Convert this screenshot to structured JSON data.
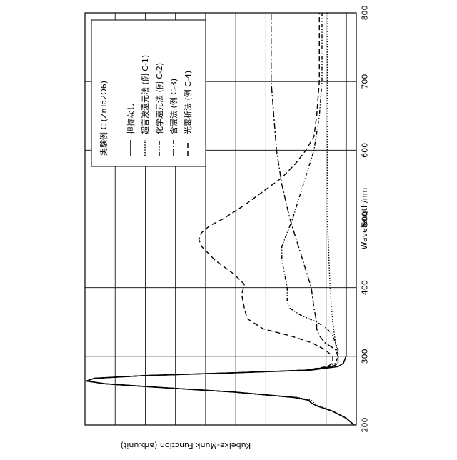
{
  "chart_data": {
    "type": "line",
    "orientation": "rotated-90",
    "title": "",
    "xlabel": "Wavelength/nm",
    "ylabel": "Kubelka-Munk Function (arb.unit)",
    "xlim": [
      200,
      800
    ],
    "x_ticks": [
      200,
      300,
      400,
      500,
      600,
      700,
      800
    ],
    "ylim": [
      0,
      1
    ],
    "grid": true,
    "legend": {
      "placement": "top-left",
      "title": "実験例 C (ZnTa2O6)"
    },
    "series": [
      {
        "name": "担持なし",
        "style": "solid",
        "x": [
          200,
          210,
          220,
          228,
          232,
          236,
          240,
          248,
          255,
          260,
          264,
          268,
          272,
          276,
          280,
          285,
          290,
          300,
          320,
          350,
          400,
          500,
          600,
          700,
          800
        ],
        "y": [
          0.0,
          0.03,
          0.08,
          0.14,
          0.16,
          0.17,
          0.22,
          0.45,
          0.74,
          0.93,
          1.0,
          0.97,
          0.78,
          0.45,
          0.16,
          0.06,
          0.04,
          0.03,
          0.03,
          0.03,
          0.03,
          0.03,
          0.03,
          0.03,
          0.03
        ]
      },
      {
        "name": "超音波還元法 (例 C-1)",
        "style": "dotted",
        "x": [
          200,
          210,
          220,
          228,
          232,
          236,
          240,
          248,
          255,
          260,
          264,
          268,
          272,
          276,
          280,
          285,
          290,
          300,
          320,
          350,
          400,
          450,
          500,
          600,
          700,
          800
        ],
        "y": [
          0.0,
          0.03,
          0.08,
          0.13,
          0.15,
          0.16,
          0.21,
          0.45,
          0.74,
          0.93,
          1.0,
          0.97,
          0.78,
          0.45,
          0.17,
          0.08,
          0.06,
          0.06,
          0.07,
          0.08,
          0.09,
          0.095,
          0.1,
          0.1,
          0.1,
          0.1
        ]
      },
      {
        "name": "化学還元法 (例 C-2)",
        "style": "dash-dot-dot",
        "x": [
          200,
          210,
          220,
          228,
          232,
          236,
          240,
          248,
          255,
          260,
          264,
          268,
          272,
          276,
          280,
          285,
          290,
          300,
          310,
          320,
          330,
          340,
          350,
          360,
          370,
          380,
          400,
          420,
          440,
          460,
          480,
          500,
          550,
          600,
          650,
          700,
          750,
          800
        ],
        "y": [
          0.0,
          0.03,
          0.08,
          0.14,
          0.16,
          0.17,
          0.22,
          0.45,
          0.74,
          0.93,
          1.0,
          0.97,
          0.78,
          0.45,
          0.17,
          0.09,
          0.07,
          0.06,
          0.06,
          0.07,
          0.08,
          0.1,
          0.14,
          0.2,
          0.24,
          0.25,
          0.25,
          0.26,
          0.27,
          0.27,
          0.25,
          0.23,
          0.19,
          0.15,
          0.13,
          0.12,
          0.12,
          0.12
        ]
      },
      {
        "name": "含浸法 (例 C-3)",
        "style": "dash-dot",
        "x": [
          200,
          210,
          220,
          228,
          232,
          236,
          240,
          248,
          255,
          260,
          264,
          268,
          272,
          276,
          280,
          285,
          290,
          300,
          310,
          320,
          330,
          340,
          350,
          370,
          400,
          450,
          500,
          550,
          600,
          650,
          700,
          750,
          800
        ],
        "y": [
          0.0,
          0.03,
          0.08,
          0.14,
          0.16,
          0.17,
          0.22,
          0.45,
          0.74,
          0.93,
          1.0,
          0.97,
          0.78,
          0.45,
          0.17,
          0.08,
          0.06,
          0.06,
          0.07,
          0.11,
          0.13,
          0.14,
          0.14,
          0.15,
          0.16,
          0.2,
          0.24,
          0.27,
          0.29,
          0.3,
          0.31,
          0.31,
          0.31
        ]
      },
      {
        "name": "光電析法 (例 C-4)",
        "style": "dashed",
        "x": [
          200,
          210,
          220,
          228,
          232,
          236,
          240,
          248,
          255,
          260,
          264,
          268,
          272,
          276,
          280,
          285,
          290,
          300,
          310,
          320,
          330,
          340,
          355,
          370,
          390,
          405,
          420,
          440,
          460,
          470,
          480,
          490,
          500,
          520,
          540,
          560,
          580,
          600,
          620,
          650,
          700,
          750,
          800
        ],
        "y": [
          0.0,
          0.03,
          0.08,
          0.14,
          0.16,
          0.17,
          0.22,
          0.45,
          0.74,
          0.93,
          1.0,
          0.97,
          0.78,
          0.45,
          0.18,
          0.1,
          0.08,
          0.08,
          0.11,
          0.16,
          0.24,
          0.34,
          0.4,
          0.41,
          0.42,
          0.41,
          0.45,
          0.52,
          0.57,
          0.58,
          0.57,
          0.54,
          0.49,
          0.41,
          0.34,
          0.27,
          0.22,
          0.18,
          0.15,
          0.14,
          0.13,
          0.13,
          0.13
        ]
      }
    ]
  }
}
